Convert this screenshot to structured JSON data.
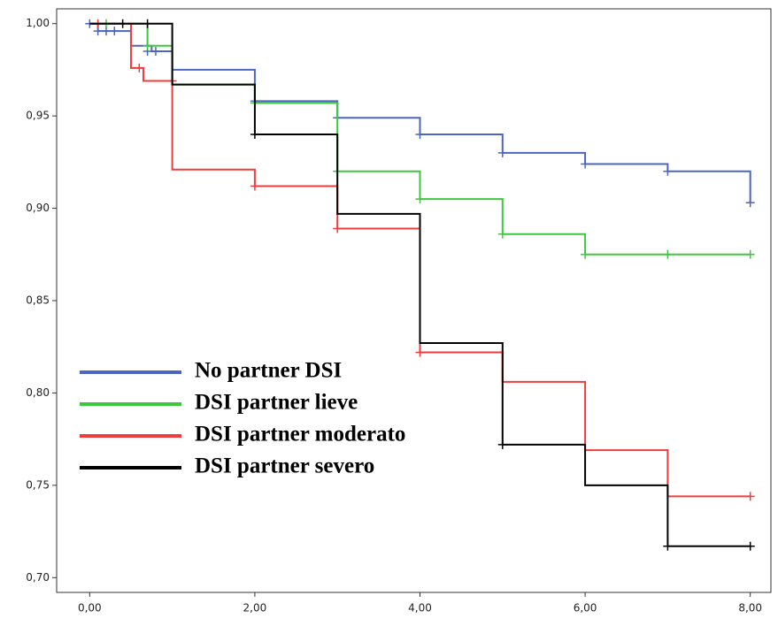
{
  "chart_data": {
    "type": "step",
    "xlim": [
      -0.4,
      8.25
    ],
    "ylim": [
      0.692,
      1.008
    ],
    "xticks": [
      {
        "value": 0,
        "label": "0,00"
      },
      {
        "value": 2,
        "label": "2,00"
      },
      {
        "value": 4,
        "label": "4,00"
      },
      {
        "value": 6,
        "label": "6,00"
      },
      {
        "value": 8,
        "label": "8,00"
      }
    ],
    "yticks": [
      {
        "value": 0.7,
        "label": "0,70"
      },
      {
        "value": 0.75,
        "label": "0,75"
      },
      {
        "value": 0.8,
        "label": "0,80"
      },
      {
        "value": 0.85,
        "label": "0,85"
      },
      {
        "value": 0.9,
        "label": "0,90"
      },
      {
        "value": 0.95,
        "label": "0,95"
      },
      {
        "value": 1.0,
        "label": "1,00"
      }
    ],
    "legend": "lower-left",
    "series": [
      {
        "name": "No partner DSI",
        "color": "#4a66c0",
        "x": [
          0,
          0.1,
          0.5,
          0.75,
          1,
          2,
          3,
          4,
          5,
          6,
          7,
          8
        ],
        "values": [
          1.0,
          0.996,
          0.988,
          0.985,
          0.975,
          0.958,
          0.949,
          0.94,
          0.93,
          0.924,
          0.92,
          0.903
        ],
        "censor_x": [
          0,
          0.1,
          0.2,
          0.3,
          0.7,
          0.8,
          2,
          3,
          4,
          5,
          6,
          7,
          8
        ],
        "censor_y": [
          1.0,
          0.996,
          0.996,
          0.996,
          0.985,
          0.985,
          0.958,
          0.949,
          0.94,
          0.93,
          0.924,
          0.92,
          0.903
        ]
      },
      {
        "name": "DSI partner lieve",
        "color": "#3cc83c",
        "x": [
          0,
          0.7,
          1,
          2,
          3,
          4,
          5,
          6,
          8
        ],
        "values": [
          1.0,
          0.988,
          0.967,
          0.957,
          0.92,
          0.905,
          0.886,
          0.875,
          0.875
        ],
        "censor_x": [
          0.2,
          0.7,
          2,
          3,
          4,
          5,
          6,
          7,
          8
        ],
        "censor_y": [
          1.0,
          0.988,
          0.957,
          0.92,
          0.905,
          0.886,
          0.875,
          0.875,
          0.875
        ]
      },
      {
        "name": "DSI partner moderato",
        "color": "#f03c3c",
        "x": [
          0,
          0.5,
          0.65,
          1,
          2,
          3,
          4,
          5,
          6,
          7,
          8
        ],
        "values": [
          1.0,
          0.976,
          0.969,
          0.921,
          0.912,
          0.889,
          0.822,
          0.806,
          0.769,
          0.744,
          0.744
        ],
        "censor_x": [
          0.1,
          0.6,
          1,
          2,
          3,
          4,
          8
        ],
        "censor_y": [
          1.0,
          0.976,
          0.969,
          0.912,
          0.889,
          0.822,
          0.744
        ]
      },
      {
        "name": "DSI partner severo",
        "color": "#000000",
        "x": [
          0,
          1,
          2,
          3,
          4,
          5,
          6,
          7,
          8
        ],
        "values": [
          1.0,
          0.967,
          0.94,
          0.897,
          0.827,
          0.772,
          0.75,
          0.717,
          0.717
        ],
        "censor_x": [
          0.4,
          0.7,
          2,
          5,
          7,
          8
        ],
        "censor_y": [
          1.0,
          1.0,
          0.94,
          0.772,
          0.717,
          0.717
        ]
      }
    ]
  }
}
